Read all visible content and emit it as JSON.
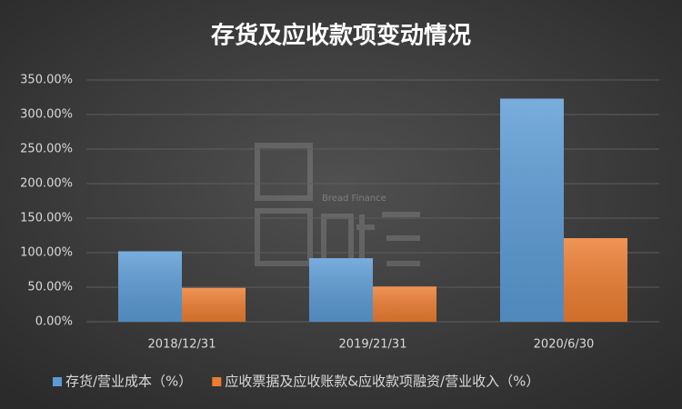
{
  "chart_data": {
    "type": "bar",
    "title": "存货及应收款项变动情况",
    "categories": [
      "2018/12/31",
      "2019/21/31",
      "2020/6/30"
    ],
    "series": [
      {
        "name": "存货/营业成本（%）",
        "color": "#5b9bd5",
        "values": [
          102,
          92,
          323
        ]
      },
      {
        "name": "应收票据及应收账款&应收款项融资/营业收入（%）",
        "color": "#ed7d31",
        "values": [
          49,
          51,
          121
        ]
      }
    ],
    "ylim": [
      0,
      350
    ],
    "yticks": [
      {
        "value": 0,
        "label": "0.00%"
      },
      {
        "value": 50,
        "label": "50.00%"
      },
      {
        "value": 100,
        "label": "100.00%"
      },
      {
        "value": 150,
        "label": "150.00%"
      },
      {
        "value": 200,
        "label": "200.00%"
      },
      {
        "value": 250,
        "label": "250.00%"
      },
      {
        "value": 300,
        "label": "300.00%"
      },
      {
        "value": 350,
        "label": "350.00%"
      }
    ],
    "grid": true,
    "legend": "bottom",
    "watermark": "Bread Finance"
  }
}
